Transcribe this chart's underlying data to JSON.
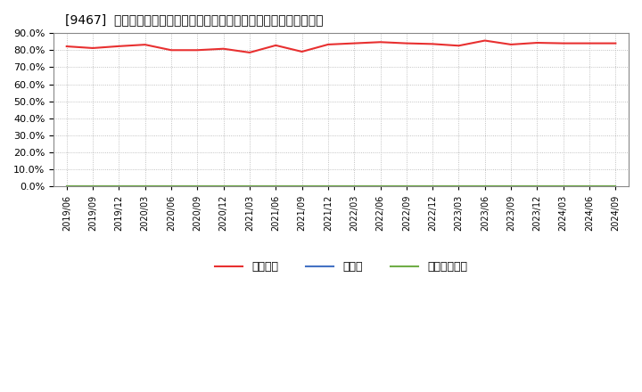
{
  "title": "[9467]  自己資本、のれん、繰延税金資産の総資産に対する比率の推移",
  "x_labels": [
    "2019/06",
    "2019/09",
    "2019/12",
    "2020/03",
    "2020/06",
    "2020/09",
    "2020/12",
    "2021/03",
    "2021/06",
    "2021/09",
    "2021/12",
    "2022/03",
    "2022/06",
    "2022/09",
    "2022/12",
    "2023/03",
    "2023/06",
    "2023/09",
    "2023/12",
    "2024/03",
    "2024/06",
    "2024/09"
  ],
  "jikoshihon": [
    0.822,
    0.812,
    0.823,
    0.832,
    0.8,
    0.8,
    0.808,
    0.786,
    0.828,
    0.791,
    0.833,
    0.84,
    0.847,
    0.84,
    0.836,
    0.826,
    0.856,
    0.833,
    0.843,
    0.84,
    0.84,
    0.84
  ],
  "noren": [
    0,
    0,
    0,
    0,
    0,
    0,
    0,
    0,
    0,
    0,
    0,
    0,
    0,
    0,
    0,
    0,
    0,
    0,
    0,
    0,
    0,
    0
  ],
  "kuenze": [
    0,
    0,
    0,
    0,
    0,
    0,
    0,
    0,
    0,
    0,
    0,
    0,
    0,
    0,
    0,
    0,
    0,
    0,
    0,
    0,
    0,
    0
  ],
  "jikoshihon_color": "#e83030",
  "noren_color": "#4472c4",
  "kuenze_color": "#70ad47",
  "background_color": "#ffffff",
  "grid_color": "#b0b0b0",
  "ylim": [
    0.0,
    0.9
  ],
  "yticks": [
    0.0,
    0.1,
    0.2,
    0.3,
    0.4,
    0.5,
    0.6,
    0.7,
    0.8,
    0.9
  ],
  "legend_labels": [
    "自己資本",
    "のれん",
    "繰延税金資産"
  ]
}
